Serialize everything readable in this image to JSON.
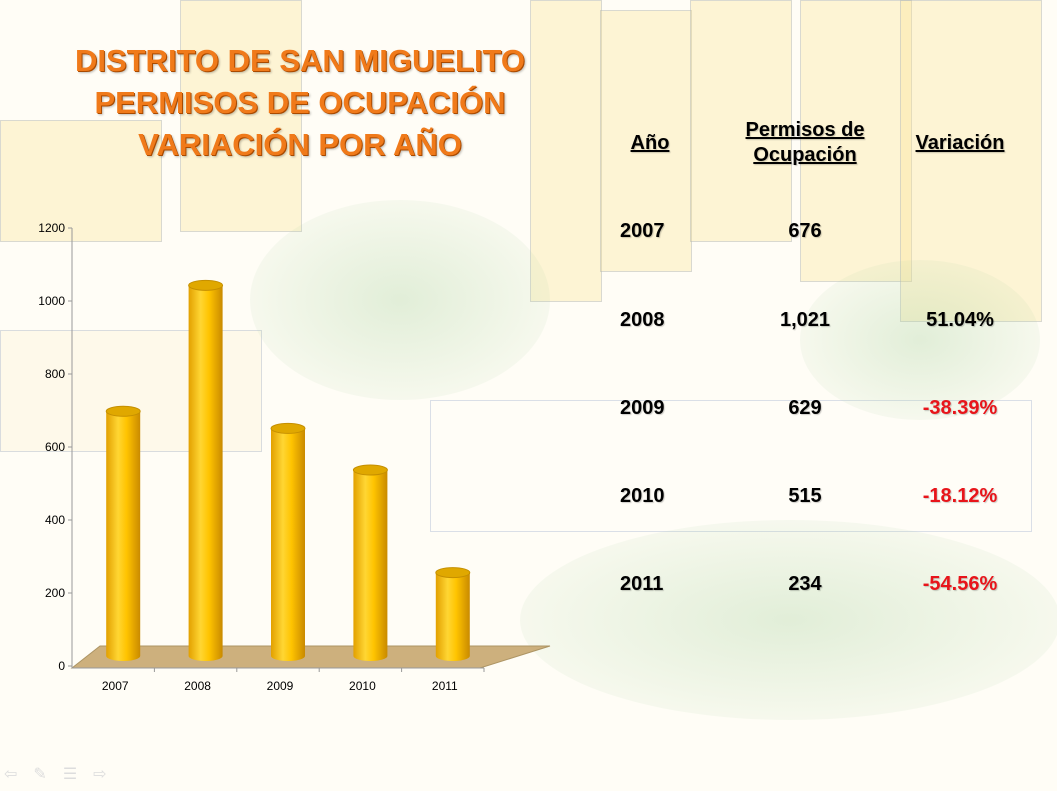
{
  "title": [
    "DISTRITO DE SAN MIGUELITO",
    "PERMISOS DE OCUPACIÓN",
    "VARIACIÓN POR AÑO"
  ],
  "table": {
    "headers": {
      "year": "Año",
      "permits": "Permisos de Ocupación",
      "variation": "Variación"
    },
    "rows": [
      {
        "year": "2007",
        "permits": "676",
        "variation": ""
      },
      {
        "year": "2008",
        "permits": "1,021",
        "variation": "51.04%"
      },
      {
        "year": "2009",
        "permits": "629",
        "variation": "-38.39%"
      },
      {
        "year": "2010",
        "permits": "515",
        "variation": "-18.12%"
      },
      {
        "year": "2011",
        "permits": "234",
        "variation": "-54.56%"
      }
    ]
  },
  "colors": {
    "title": "#f07a1a",
    "bar": "#ffc000",
    "negative": "#e8141a",
    "floor": "#c8a870"
  },
  "chart_data": {
    "type": "bar",
    "style": "3d-cylinder",
    "categories": [
      "2007",
      "2008",
      "2009",
      "2010",
      "2011"
    ],
    "values": [
      676,
      1021,
      629,
      515,
      234
    ],
    "ylim": [
      0,
      1200
    ],
    "yticks": [
      "0",
      "200",
      "400",
      "600",
      "800",
      "1000",
      "1200"
    ],
    "title": "",
    "xlabel": "",
    "ylabel": "",
    "legend": "none",
    "grid": false
  },
  "nav_icons": [
    "arrow-left-icon",
    "pen-icon",
    "menu-icon",
    "arrow-right-icon"
  ]
}
